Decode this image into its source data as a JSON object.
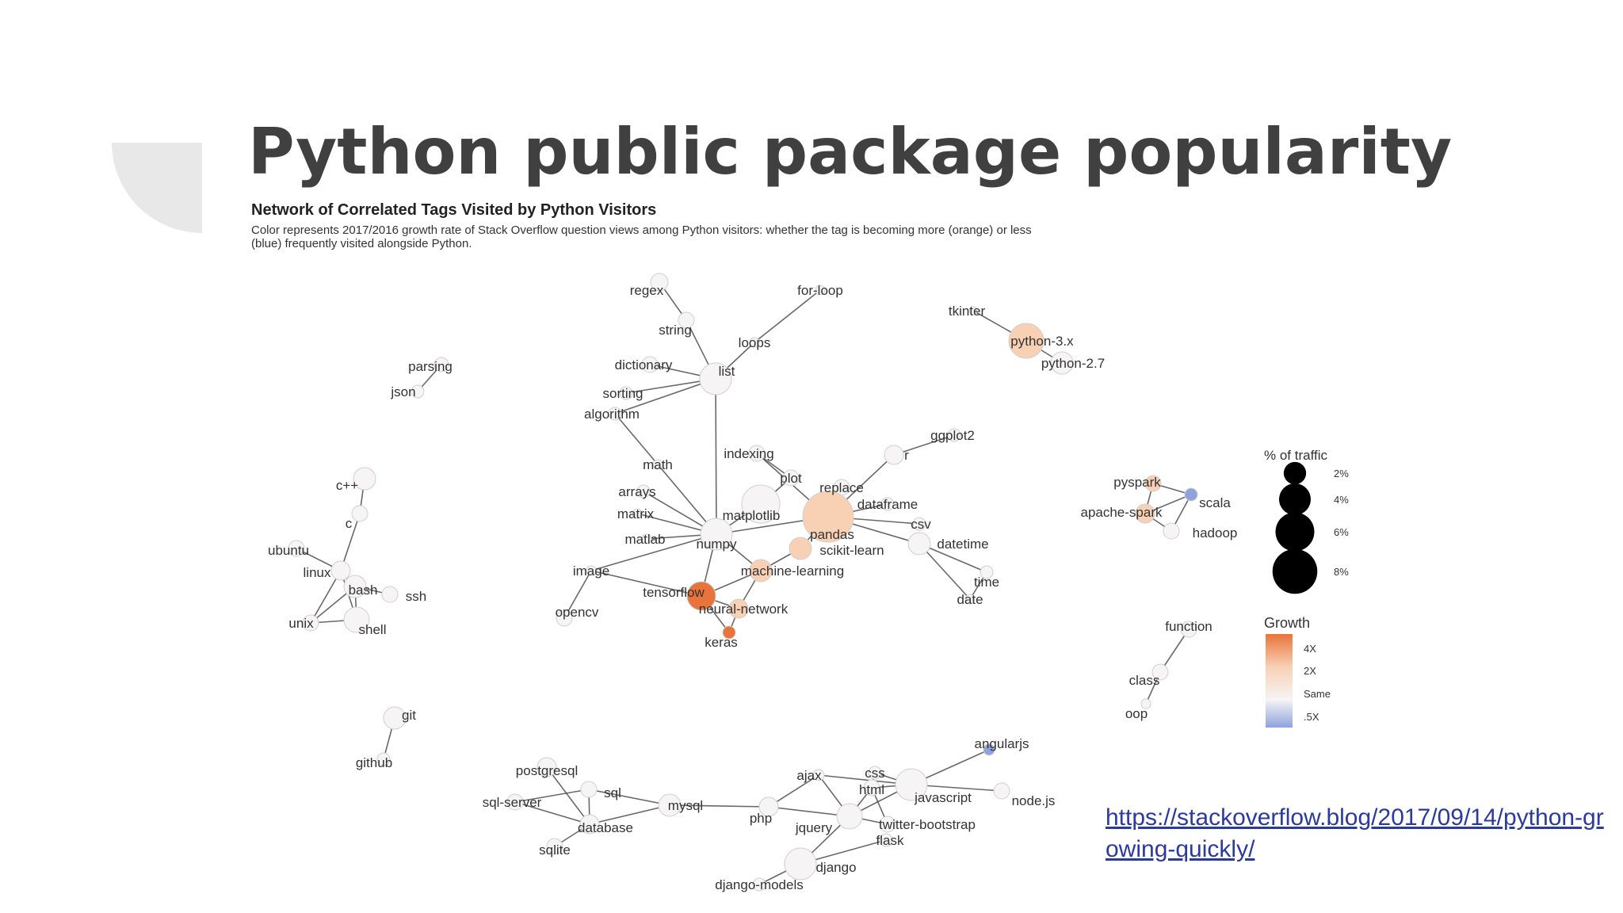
{
  "slide": {
    "title": "Python public package popularity",
    "link": "https://stackoverflow.blog/2017/09/14/python-growing-quickly/"
  },
  "figure": {
    "title": "Network of Correlated Tags Visited by Python Visitors",
    "subtitle": "Color represents 2017/2016 growth rate of Stack Overflow question views among Python visitors: whether the tag is becoming more (orange) or less (blue) frequently visited alongside Python."
  },
  "traffic_legend": {
    "title": "% of traffic",
    "items": [
      {
        "label": "2%",
        "value": 2
      },
      {
        "label": "4%",
        "value": 4
      },
      {
        "label": "6%",
        "value": 6
      },
      {
        "label": "8%",
        "value": 8
      }
    ]
  },
  "growth_legend": {
    "title": "Growth",
    "labels": [
      "4X",
      "2X",
      "Same",
      ".5X"
    ],
    "colors": {
      "high": "#e8743b",
      "mid": "#f8d0b4",
      "same": "#f6f4f4",
      "low": "#8fa2dc"
    }
  },
  "nodes": [
    {
      "name": "regex",
      "growth": "same"
    },
    {
      "name": "for-loop",
      "growth": "same"
    },
    {
      "name": "string",
      "growth": "same"
    },
    {
      "name": "loops",
      "growth": "same"
    },
    {
      "name": "tkinter",
      "growth": "same"
    },
    {
      "name": "python-3.x",
      "growth": "mid"
    },
    {
      "name": "python-2.7",
      "growth": "same"
    },
    {
      "name": "dictionary",
      "growth": "same"
    },
    {
      "name": "list",
      "growth": "same"
    },
    {
      "name": "parsing",
      "growth": "same"
    },
    {
      "name": "json",
      "growth": "same"
    },
    {
      "name": "sorting",
      "growth": "same"
    },
    {
      "name": "algorithm",
      "growth": "same"
    },
    {
      "name": "ggplot2",
      "growth": "same"
    },
    {
      "name": "r",
      "growth": "same"
    },
    {
      "name": "indexing",
      "growth": "same"
    },
    {
      "name": "math",
      "growth": "same"
    },
    {
      "name": "plot",
      "growth": "same"
    },
    {
      "name": "replace",
      "growth": "same"
    },
    {
      "name": "dataframe",
      "growth": "same"
    },
    {
      "name": "arrays",
      "growth": "same"
    },
    {
      "name": "matrix",
      "growth": "same"
    },
    {
      "name": "matplotlib",
      "growth": "same"
    },
    {
      "name": "pandas",
      "growth": "mid"
    },
    {
      "name": "csv",
      "growth": "same"
    },
    {
      "name": "matlab",
      "growth": "same"
    },
    {
      "name": "numpy",
      "growth": "same"
    },
    {
      "name": "scikit-learn",
      "growth": "mid"
    },
    {
      "name": "datetime",
      "growth": "same"
    },
    {
      "name": "image",
      "growth": "same"
    },
    {
      "name": "machine-learning",
      "growth": "mid"
    },
    {
      "name": "time",
      "growth": "same"
    },
    {
      "name": "tensorflow",
      "growth": "high"
    },
    {
      "name": "date",
      "growth": "same"
    },
    {
      "name": "neural-network",
      "growth": "mid"
    },
    {
      "name": "opencv",
      "growth": "same"
    },
    {
      "name": "keras",
      "growth": "high"
    },
    {
      "name": "c++",
      "growth": "same"
    },
    {
      "name": "c",
      "growth": "same"
    },
    {
      "name": "ubuntu",
      "growth": "same"
    },
    {
      "name": "linux",
      "growth": "same"
    },
    {
      "name": "bash",
      "growth": "same"
    },
    {
      "name": "ssh",
      "growth": "same"
    },
    {
      "name": "unix",
      "growth": "same"
    },
    {
      "name": "shell",
      "growth": "same"
    },
    {
      "name": "pyspark",
      "growth": "mid"
    },
    {
      "name": "scala",
      "growth": "low"
    },
    {
      "name": "apache-spark",
      "growth": "mid"
    },
    {
      "name": "hadoop",
      "growth": "same"
    },
    {
      "name": "function",
      "growth": "same"
    },
    {
      "name": "class",
      "growth": "same"
    },
    {
      "name": "oop",
      "growth": "same"
    },
    {
      "name": "git",
      "growth": "same"
    },
    {
      "name": "github",
      "growth": "same"
    },
    {
      "name": "angularjs",
      "growth": "low"
    },
    {
      "name": "postgresql",
      "growth": "same"
    },
    {
      "name": "ajax",
      "growth": "same"
    },
    {
      "name": "css",
      "growth": "same"
    },
    {
      "name": "sql",
      "growth": "same"
    },
    {
      "name": "html",
      "growth": "same"
    },
    {
      "name": "javascript",
      "growth": "same"
    },
    {
      "name": "sql-server",
      "growth": "same"
    },
    {
      "name": "mysql",
      "growth": "same"
    },
    {
      "name": "node.js",
      "growth": "same"
    },
    {
      "name": "php",
      "growth": "same"
    },
    {
      "name": "jquery",
      "growth": "same"
    },
    {
      "name": "twitter-bootstrap",
      "growth": "same"
    },
    {
      "name": "database",
      "growth": "same"
    },
    {
      "name": "flask",
      "growth": "same"
    },
    {
      "name": "sqlite",
      "growth": "same"
    },
    {
      "name": "django",
      "growth": "same"
    },
    {
      "name": "django-models",
      "growth": "same"
    }
  ],
  "edges": [
    [
      "regex",
      "string"
    ],
    [
      "string",
      "list"
    ],
    [
      "for-loop",
      "loops"
    ],
    [
      "loops",
      "list"
    ],
    [
      "dictionary",
      "list"
    ],
    [
      "list",
      "sorting"
    ],
    [
      "list",
      "algorithm"
    ],
    [
      "list",
      "numpy"
    ],
    [
      "tkinter",
      "python-3.x"
    ],
    [
      "python-3.x",
      "python-2.7"
    ],
    [
      "parsing",
      "json"
    ],
    [
      "algorithm",
      "math"
    ],
    [
      "math",
      "numpy"
    ],
    [
      "arrays",
      "numpy"
    ],
    [
      "matrix",
      "numpy"
    ],
    [
      "matlab",
      "numpy"
    ],
    [
      "numpy",
      "matplotlib"
    ],
    [
      "numpy",
      "pandas"
    ],
    [
      "numpy",
      "image"
    ],
    [
      "numpy",
      "tensorflow"
    ],
    [
      "numpy",
      "machine-learning"
    ],
    [
      "matplotlib",
      "plot"
    ],
    [
      "plot",
      "indexing"
    ],
    [
      "pandas",
      "indexing"
    ],
    [
      "pandas",
      "replace"
    ],
    [
      "pandas",
      "dataframe"
    ],
    [
      "pandas",
      "csv"
    ],
    [
      "pandas",
      "datetime"
    ],
    [
      "pandas",
      "r"
    ],
    [
      "r",
      "ggplot2"
    ],
    [
      "pandas",
      "scikit-learn"
    ],
    [
      "scikit-learn",
      "machine-learning"
    ],
    [
      "datetime",
      "time"
    ],
    [
      "datetime",
      "date"
    ],
    [
      "time",
      "date"
    ],
    [
      "image",
      "opencv"
    ],
    [
      "image",
      "tensorflow"
    ],
    [
      "machine-learning",
      "tensorflow"
    ],
    [
      "machine-learning",
      "neural-network"
    ],
    [
      "tensorflow",
      "neural-network"
    ],
    [
      "tensorflow",
      "keras"
    ],
    [
      "neural-network",
      "keras"
    ],
    [
      "c++",
      "c"
    ],
    [
      "c",
      "linux"
    ],
    [
      "ubuntu",
      "linux"
    ],
    [
      "linux",
      "bash"
    ],
    [
      "linux",
      "unix"
    ],
    [
      "linux",
      "shell"
    ],
    [
      "bash",
      "shell"
    ],
    [
      "bash",
      "unix"
    ],
    [
      "unix",
      "shell"
    ],
    [
      "bash",
      "ssh"
    ],
    [
      "pyspark",
      "apache-spark"
    ],
    [
      "pyspark",
      "scala"
    ],
    [
      "apache-spark",
      "scala"
    ],
    [
      "apache-spark",
      "hadoop"
    ],
    [
      "scala",
      "hadoop"
    ],
    [
      "function",
      "class"
    ],
    [
      "class",
      "oop"
    ],
    [
      "git",
      "github"
    ],
    [
      "postgresql",
      "database"
    ],
    [
      "sql",
      "database"
    ],
    [
      "sql-server",
      "database"
    ],
    [
      "sql",
      "sql-server"
    ],
    [
      "mysql",
      "database"
    ],
    [
      "mysql",
      "sql"
    ],
    [
      "mysql",
      "php"
    ],
    [
      "sqlite",
      "database"
    ],
    [
      "php",
      "jquery"
    ],
    [
      "jquery",
      "javascript"
    ],
    [
      "jquery",
      "ajax"
    ],
    [
      "jquery",
      "html"
    ],
    [
      "html",
      "css"
    ],
    [
      "html",
      "javascript"
    ],
    [
      "css",
      "javascript"
    ],
    [
      "javascript",
      "angularjs"
    ],
    [
      "javascript",
      "node.js"
    ],
    [
      "html",
      "twitter-bootstrap"
    ],
    [
      "jquery",
      "twitter-bootstrap"
    ],
    [
      "ajax",
      "javascript"
    ],
    [
      "flask",
      "django"
    ],
    [
      "django",
      "django-models"
    ],
    [
      "jquery",
      "django"
    ],
    [
      "php",
      "ajax"
    ]
  ]
}
